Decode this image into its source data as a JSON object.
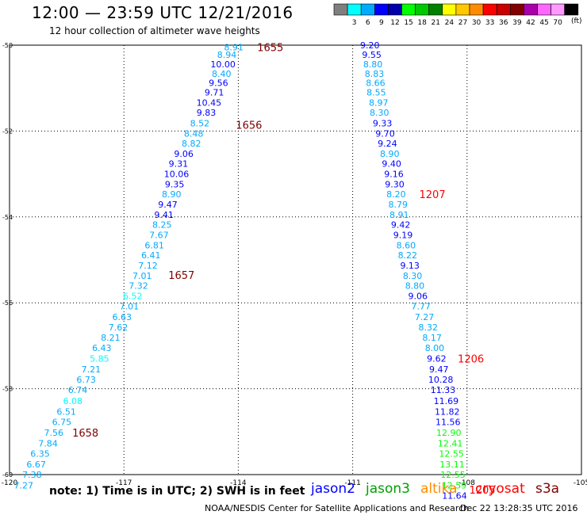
{
  "header": {
    "title": "12:00 — 23:59 UTC 12/21/2016",
    "subtitle": "12 hour collection of altimeter wave heights"
  },
  "legend": {
    "colors": [
      "#7f7f7f",
      "#00ffff",
      "#00aaff",
      "#0000ff",
      "#0000aa",
      "#00ff00",
      "#00c800",
      "#008000",
      "#ffff00",
      "#ffc800",
      "#ff8c00",
      "#ff0000",
      "#c80000",
      "#800000",
      "#aa00aa",
      "#ff66ff",
      "#ff99ff",
      "#000000"
    ],
    "labels": [
      "3",
      "6",
      "9",
      "12",
      "15",
      "18",
      "21",
      "24",
      "27",
      "30",
      "33",
      "36",
      "39",
      "42",
      "45",
      "70"
    ],
    "unit": "(ft)"
  },
  "footer": {
    "note": "note:  1) Time is in UTC;  2) SWH is in feet",
    "satellites": [
      {
        "name": "jason2",
        "color": "#0000ff"
      },
      {
        "name": "jason3",
        "color": "#00a000"
      },
      {
        "name": "altika",
        "color": "#ff8c00"
      },
      {
        "name": "cryosat",
        "color": "#ff0000"
      },
      {
        "name": "s3a",
        "color": "#800000"
      }
    ],
    "credit": "NOAA/NESDIS Center for Satellite Applications and Research",
    "timestamp": "Dec 22 13:28:35 UTC 2016"
  },
  "chart_data": {
    "type": "scatter",
    "title": "12:00 — 23:59 UTC 12/21/2016",
    "xlim": [
      -120,
      -105
    ],
    "ylim": [
      -60,
      -50
    ],
    "x_ticks": [
      -120,
      -117,
      -114,
      -111,
      -108,
      -105
    ],
    "x_tick_labels": [
      "-120",
      "-117",
      "-114",
      "-111",
      "-108",
      "-105"
    ],
    "y_ticks": [
      -50,
      -52,
      -54,
      -56,
      -58,
      -60
    ],
    "y_tick_labels": [
      "-50",
      "-52",
      "-54",
      "-56",
      "-58",
      "-60"
    ],
    "grid": true,
    "series": [
      {
        "points": [
          {
            "x": -114.12,
            "y": -50.05,
            "v": "8.91",
            "c": "#00aaff"
          },
          {
            "x": -114.3,
            "y": -50.22,
            "v": "8.94",
            "c": "#00aaff"
          },
          {
            "x": -114.4,
            "y": -50.44,
            "v": "10.00",
            "c": "#0000ff"
          },
          {
            "x": -114.44,
            "y": -50.66,
            "v": "8.40",
            "c": "#00aaff"
          },
          {
            "x": -114.52,
            "y": -50.88,
            "v": "9.56",
            "c": "#0000ff"
          },
          {
            "x": -114.63,
            "y": -51.1,
            "v": "9.71",
            "c": "#0000ff"
          },
          {
            "x": -114.77,
            "y": -51.34,
            "v": "10.45",
            "c": "#0000ff"
          },
          {
            "x": -114.84,
            "y": -51.57,
            "v": "9.83",
            "c": "#0000ff"
          },
          {
            "x": -115.01,
            "y": -51.82,
            "v": "8.52",
            "c": "#00aaff"
          },
          {
            "x": -115.17,
            "y": -52.06,
            "v": "8.48",
            "c": "#00aaff"
          },
          {
            "x": -115.23,
            "y": -52.29,
            "v": "8.82",
            "c": "#00aaff"
          },
          {
            "x": -115.43,
            "y": -52.53,
            "v": "9.06",
            "c": "#0000ff"
          },
          {
            "x": -115.57,
            "y": -52.76,
            "v": "9.31",
            "c": "#0000ff"
          },
          {
            "x": -115.62,
            "y": -53.0,
            "v": "10.06",
            "c": "#0000ff"
          },
          {
            "x": -115.67,
            "y": -53.24,
            "v": "9.35",
            "c": "#0000ff"
          },
          {
            "x": -115.75,
            "y": -53.47,
            "v": "8.90",
            "c": "#00aaff"
          },
          {
            "x": -115.85,
            "y": -53.71,
            "v": "9.47",
            "c": "#0000ff"
          },
          {
            "x": -115.95,
            "y": -53.95,
            "v": "9.41",
            "c": "#0000ff"
          },
          {
            "x": -116.0,
            "y": -54.18,
            "v": "8.25",
            "c": "#00aaff"
          },
          {
            "x": -116.08,
            "y": -54.42,
            "v": "7.67",
            "c": "#00aaff"
          },
          {
            "x": -116.2,
            "y": -54.66,
            "v": "6.81",
            "c": "#00aaff"
          },
          {
            "x": -116.29,
            "y": -54.89,
            "v": "6.41",
            "c": "#00aaff"
          },
          {
            "x": -116.37,
            "y": -55.13,
            "v": "7.12",
            "c": "#00aaff"
          },
          {
            "x": -116.52,
            "y": -55.37,
            "v": "7.01",
            "c": "#00aaff"
          },
          {
            "x": -116.62,
            "y": -55.6,
            "v": "7.32",
            "c": "#00aaff"
          },
          {
            "x": -116.77,
            "y": -55.84,
            "v": "6.52",
            "c": "#00ffff"
          },
          {
            "x": -116.86,
            "y": -56.08,
            "v": "7.01",
            "c": "#00aaff"
          },
          {
            "x": -117.05,
            "y": -56.33,
            "v": "6.63",
            "c": "#00aaff"
          },
          {
            "x": -117.15,
            "y": -56.57,
            "v": "7.62",
            "c": "#00aaff"
          },
          {
            "x": -117.35,
            "y": -56.81,
            "v": "8.21",
            "c": "#00aaff"
          },
          {
            "x": -117.58,
            "y": -57.05,
            "v": "6.43",
            "c": "#00aaff"
          },
          {
            "x": -117.64,
            "y": -57.3,
            "v": "5.85",
            "c": "#00ffff"
          },
          {
            "x": -117.86,
            "y": -57.55,
            "v": "7.21",
            "c": "#00aaff"
          },
          {
            "x": -117.99,
            "y": -57.79,
            "v": "6.73",
            "c": "#00aaff"
          },
          {
            "x": -118.21,
            "y": -58.03,
            "v": "6.74",
            "c": "#00aaff"
          },
          {
            "x": -118.34,
            "y": -58.28,
            "v": "6.08",
            "c": "#00ffff"
          },
          {
            "x": -118.51,
            "y": -58.53,
            "v": "6.51",
            "c": "#00aaff"
          },
          {
            "x": -118.63,
            "y": -58.77,
            "v": "6.75",
            "c": "#00aaff"
          },
          {
            "x": -118.84,
            "y": -59.02,
            "v": "7.56",
            "c": "#00aaff"
          },
          {
            "x": -118.99,
            "y": -59.27,
            "v": "7.84",
            "c": "#00aaff"
          },
          {
            "x": -119.2,
            "y": -59.51,
            "v": "6.35",
            "c": "#00aaff"
          },
          {
            "x": -119.3,
            "y": -59.76,
            "v": "6.67",
            "c": "#00aaff"
          },
          {
            "x": -119.41,
            "y": -60.0,
            "v": "7.38",
            "c": "#00aaff"
          },
          {
            "x": -119.63,
            "y": -60.25,
            "v": "7.27",
            "c": "#00aaff"
          }
        ]
      },
      {
        "points": [
          {
            "x": -110.55,
            "y": -50.0,
            "v": "9.20",
            "c": "#0000ff"
          },
          {
            "x": -110.5,
            "y": -50.22,
            "v": "9.55",
            "c": "#0000ff"
          },
          {
            "x": -110.47,
            "y": -50.44,
            "v": "8.80",
            "c": "#00aaff"
          },
          {
            "x": -110.43,
            "y": -50.66,
            "v": "8.83",
            "c": "#00aaff"
          },
          {
            "x": -110.4,
            "y": -50.88,
            "v": "8.66",
            "c": "#00aaff"
          },
          {
            "x": -110.38,
            "y": -51.1,
            "v": "8.55",
            "c": "#00aaff"
          },
          {
            "x": -110.32,
            "y": -51.34,
            "v": "8.97",
            "c": "#00aaff"
          },
          {
            "x": -110.3,
            "y": -51.57,
            "v": "8.30",
            "c": "#00aaff"
          },
          {
            "x": -110.22,
            "y": -51.82,
            "v": "9.33",
            "c": "#0000ff"
          },
          {
            "x": -110.15,
            "y": -52.06,
            "v": "9.70",
            "c": "#0000ff"
          },
          {
            "x": -110.09,
            "y": -52.29,
            "v": "9.24",
            "c": "#0000ff"
          },
          {
            "x": -110.03,
            "y": -52.53,
            "v": "8.90",
            "c": "#00aaff"
          },
          {
            "x": -109.98,
            "y": -52.76,
            "v": "9.40",
            "c": "#0000ff"
          },
          {
            "x": -109.92,
            "y": -53.0,
            "v": "9.16",
            "c": "#0000ff"
          },
          {
            "x": -109.9,
            "y": -53.24,
            "v": "9.30",
            "c": "#0000ff"
          },
          {
            "x": -109.86,
            "y": -53.47,
            "v": "8.20",
            "c": "#00aaff"
          },
          {
            "x": -109.81,
            "y": -53.71,
            "v": "8.79",
            "c": "#00aaff"
          },
          {
            "x": -109.78,
            "y": -53.95,
            "v": "8.91",
            "c": "#00aaff"
          },
          {
            "x": -109.74,
            "y": -54.18,
            "v": "9.42",
            "c": "#0000ff"
          },
          {
            "x": -109.68,
            "y": -54.42,
            "v": "9.19",
            "c": "#0000ff"
          },
          {
            "x": -109.6,
            "y": -54.66,
            "v": "8.60",
            "c": "#00aaff"
          },
          {
            "x": -109.56,
            "y": -54.89,
            "v": "8.22",
            "c": "#00aaff"
          },
          {
            "x": -109.5,
            "y": -55.13,
            "v": "9.13",
            "c": "#0000ff"
          },
          {
            "x": -109.43,
            "y": -55.37,
            "v": "8.30",
            "c": "#00aaff"
          },
          {
            "x": -109.37,
            "y": -55.6,
            "v": "8.80",
            "c": "#00aaff"
          },
          {
            "x": -109.29,
            "y": -55.84,
            "v": "9.06",
            "c": "#0000ff"
          },
          {
            "x": -109.21,
            "y": -56.08,
            "v": "7.77",
            "c": "#00aaff"
          },
          {
            "x": -109.12,
            "y": -56.33,
            "v": "7.27",
            "c": "#00aaff"
          },
          {
            "x": -109.02,
            "y": -56.57,
            "v": "8.32",
            "c": "#00aaff"
          },
          {
            "x": -108.92,
            "y": -56.81,
            "v": "8.17",
            "c": "#00aaff"
          },
          {
            "x": -108.85,
            "y": -57.05,
            "v": "8.00",
            "c": "#00aaff"
          },
          {
            "x": -108.8,
            "y": -57.3,
            "v": "9.62",
            "c": "#0000ff"
          },
          {
            "x": -108.74,
            "y": -57.55,
            "v": "9.47",
            "c": "#0000ff"
          },
          {
            "x": -108.69,
            "y": -57.79,
            "v": "10.28",
            "c": "#0000ff"
          },
          {
            "x": -108.63,
            "y": -58.03,
            "v": "11.33",
            "c": "#0000ff"
          },
          {
            "x": -108.55,
            "y": -58.28,
            "v": "11.69",
            "c": "#0000ff"
          },
          {
            "x": -108.52,
            "y": -58.53,
            "v": "11.82",
            "c": "#0000ff"
          },
          {
            "x": -108.5,
            "y": -58.77,
            "v": "11.56",
            "c": "#0000ff"
          },
          {
            "x": -108.48,
            "y": -59.02,
            "v": "12.90",
            "c": "#00ff00"
          },
          {
            "x": -108.44,
            "y": -59.27,
            "v": "12.41",
            "c": "#00ff00"
          },
          {
            "x": -108.41,
            "y": -59.51,
            "v": "12.55",
            "c": "#00ff00"
          },
          {
            "x": -108.39,
            "y": -59.76,
            "v": "13.11",
            "c": "#00ff00"
          },
          {
            "x": -108.37,
            "y": -60.0,
            "v": "12.55",
            "c": "#00ff00"
          },
          {
            "x": -108.34,
            "y": -60.25,
            "v": "12.59",
            "c": "#00ff00"
          },
          {
            "x": -108.33,
            "y": -60.49,
            "v": "11.64",
            "c": "#0000ff"
          }
        ]
      }
    ],
    "time_labels": [
      {
        "x": -113.16,
        "y": -50.05,
        "text": "1655",
        "color": "#800000"
      },
      {
        "x": -113.72,
        "y": -51.85,
        "text": "1656",
        "color": "#800000"
      },
      {
        "x": -115.49,
        "y": -55.35,
        "text": "1657",
        "color": "#800000"
      },
      {
        "x": -118.01,
        "y": -59.02,
        "text": "1658",
        "color": "#800000"
      },
      {
        "x": -108.91,
        "y": -53.47,
        "text": "1207",
        "color": "#ff0000"
      },
      {
        "x": -107.9,
        "y": -57.3,
        "text": "1206",
        "color": "#ff0000"
      },
      {
        "x": -107.6,
        "y": -60.35,
        "text": "1205",
        "color": "#ff0000"
      }
    ]
  }
}
